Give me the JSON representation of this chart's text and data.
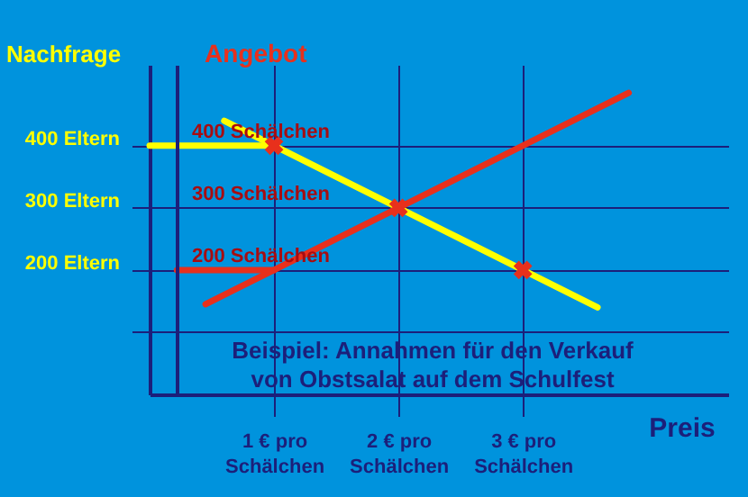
{
  "chart_data": {
    "type": "line",
    "xlabel": "Preis",
    "ylabel": "Nachfrage",
    "y2label": "Angebot",
    "annotations": [
      "Beispiel: Annahmen für den Verkauf von Obstsalat auf dem Schulfest"
    ],
    "xlim": [
      0,
      4.65
    ],
    "ylim": [
      0,
      530
    ],
    "y2lim": [
      0,
      530
    ],
    "xticks": [
      {
        "value": 1,
        "label": "1 € pro Schälchen"
      },
      {
        "value": 2,
        "label": "2 € pro Schälchen"
      },
      {
        "value": 3,
        "label": "3 € pro Schälchen"
      }
    ],
    "yticks": [
      {
        "value": 100,
        "label": null
      },
      {
        "value": 200,
        "label": "200 Eltern"
      },
      {
        "value": 300,
        "label": "300 Eltern"
      },
      {
        "value": 400,
        "label": "400 Eltern"
      }
    ],
    "y2ticks": [
      {
        "value": 200,
        "label": "200 Schälchen"
      },
      {
        "value": 300,
        "label": "300 Schälchen"
      },
      {
        "value": 400,
        "label": "400 Schälchen"
      }
    ],
    "grid": true,
    "line_style": "solid",
    "series": [
      {
        "color": "#ffff00",
        "x": [
          0.6,
          3.6
        ],
        "values": [
          440,
          140
        ]
      },
      {
        "color": "#ffff00",
        "x": [
          0,
          1
        ],
        "values": [
          400,
          400
        ]
      },
      {
        "color": "#e8301c",
        "axis": "y2",
        "x": [
          0.45,
          3.85
        ],
        "values": [
          145,
          485
        ]
      },
      {
        "color": "#e8301c",
        "axis": "y2",
        "x": [
          0.22,
          1
        ],
        "values": [
          200,
          200
        ]
      },
      {
        "type": "scatter",
        "color": "#e8301c",
        "marker": "cross",
        "x": [
          1,
          2,
          3
        ],
        "values": [
          400,
          300,
          200
        ]
      }
    ]
  }
}
